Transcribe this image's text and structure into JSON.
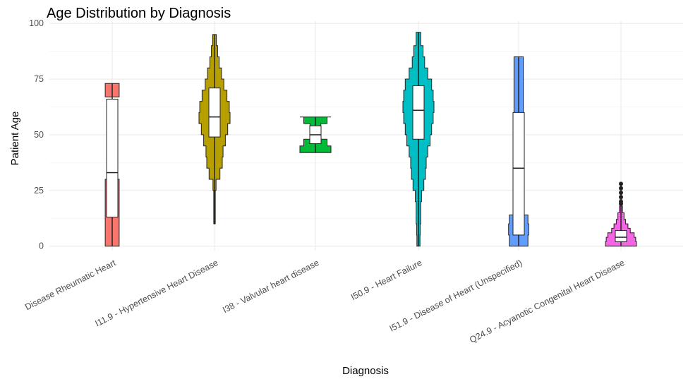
{
  "chart_data": {
    "type": "violin",
    "title": "Age Distribution by Diagnosis",
    "xlabel": "Diagnosis",
    "ylabel": "Patient Age",
    "ylim": [
      -2,
      101
    ],
    "yticks": [
      0,
      25,
      50,
      75,
      100
    ],
    "grid": true,
    "legend": "none",
    "categories": [
      "Disease Rheumatic Heart",
      "I11.9 - Hypertensive Heart Disease",
      "I38 - Valvular heart disease",
      "I50.9 - Heart Failure",
      "I51.9 - Disease of Heart (Unspecified)",
      "Q24.9 - Acyanotic Congenital Heart Disease"
    ],
    "series": [
      {
        "color": "#F8766D",
        "violin": [
          [
            0,
            0.45
          ],
          [
            4,
            0.45
          ],
          [
            10,
            0.45
          ],
          [
            14,
            0.45
          ],
          [
            20,
            0.45
          ],
          [
            29,
            0.45
          ],
          [
            30,
            0.0
          ],
          [
            66,
            0.0
          ],
          [
            67,
            0.45
          ],
          [
            73,
            0.45
          ]
        ],
        "box": {
          "min": 0,
          "q1": 13,
          "median": 33,
          "q3": 66,
          "max": 73
        }
      },
      {
        "color": "#B79F00",
        "violin": [
          [
            10,
            0.05
          ],
          [
            25,
            0.1
          ],
          [
            30,
            0.35
          ],
          [
            35,
            0.5
          ],
          [
            40,
            0.55
          ],
          [
            45,
            0.7
          ],
          [
            50,
            0.85
          ],
          [
            55,
            1.0
          ],
          [
            60,
            0.95
          ],
          [
            65,
            0.8
          ],
          [
            70,
            0.6
          ],
          [
            75,
            0.45
          ],
          [
            80,
            0.3
          ],
          [
            85,
            0.2
          ],
          [
            90,
            0.12
          ],
          [
            95,
            0.05
          ]
        ],
        "box": {
          "min": 10,
          "q1": 49,
          "median": 58,
          "q3": 71,
          "max": 95
        }
      },
      {
        "color": "#00BA38",
        "violin": [
          [
            42,
            1.0
          ],
          [
            45,
            0.75
          ],
          [
            48,
            0.35
          ],
          [
            50,
            0.25
          ],
          [
            52,
            0.35
          ],
          [
            55,
            0.75
          ],
          [
            58,
            1.0
          ]
        ],
        "box": {
          "min": 42,
          "q1": 46,
          "median": 50,
          "q3": 54,
          "max": 58
        }
      },
      {
        "color": "#00BFC4",
        "violin": [
          [
            0,
            0.1
          ],
          [
            5,
            0.12
          ],
          [
            10,
            0.15
          ],
          [
            15,
            0.15
          ],
          [
            20,
            0.2
          ],
          [
            25,
            0.35
          ],
          [
            30,
            0.45
          ],
          [
            35,
            0.5
          ],
          [
            40,
            0.6
          ],
          [
            45,
            0.75
          ],
          [
            50,
            0.85
          ],
          [
            55,
            0.95
          ],
          [
            60,
            1.0
          ],
          [
            65,
            0.95
          ],
          [
            70,
            0.85
          ],
          [
            75,
            0.6
          ],
          [
            80,
            0.4
          ],
          [
            85,
            0.3
          ],
          [
            90,
            0.15
          ],
          [
            96,
            0.05
          ]
        ],
        "box": {
          "min": 0,
          "q1": 48,
          "median": 61,
          "q3": 72,
          "max": 96
        }
      },
      {
        "color": "#619CFF",
        "violin": [
          [
            0,
            0.6
          ],
          [
            5,
            0.65
          ],
          [
            10,
            0.6
          ],
          [
            14,
            0.3
          ],
          [
            20,
            0.25
          ],
          [
            40,
            0.25
          ],
          [
            60,
            0.3
          ],
          [
            75,
            0.3
          ],
          [
            85,
            0.3
          ]
        ],
        "box": {
          "min": 0,
          "q1": 5,
          "median": 35,
          "q3": 60,
          "max": 85
        }
      },
      {
        "color": "#F564E3",
        "violin": [
          [
            0,
            1.0
          ],
          [
            2,
            0.95
          ],
          [
            4,
            0.85
          ],
          [
            6,
            0.6
          ],
          [
            8,
            0.45
          ],
          [
            10,
            0.3
          ],
          [
            12,
            0.2
          ],
          [
            15,
            0.1
          ],
          [
            18,
            0.05
          ],
          [
            22,
            0.04
          ],
          [
            28,
            0.02
          ]
        ],
        "box": {
          "min": 0,
          "q1": 2,
          "median": 4,
          "q3": 7,
          "max": 18
        },
        "outliers": [
          19,
          20,
          22,
          24,
          26,
          28
        ]
      }
    ]
  }
}
